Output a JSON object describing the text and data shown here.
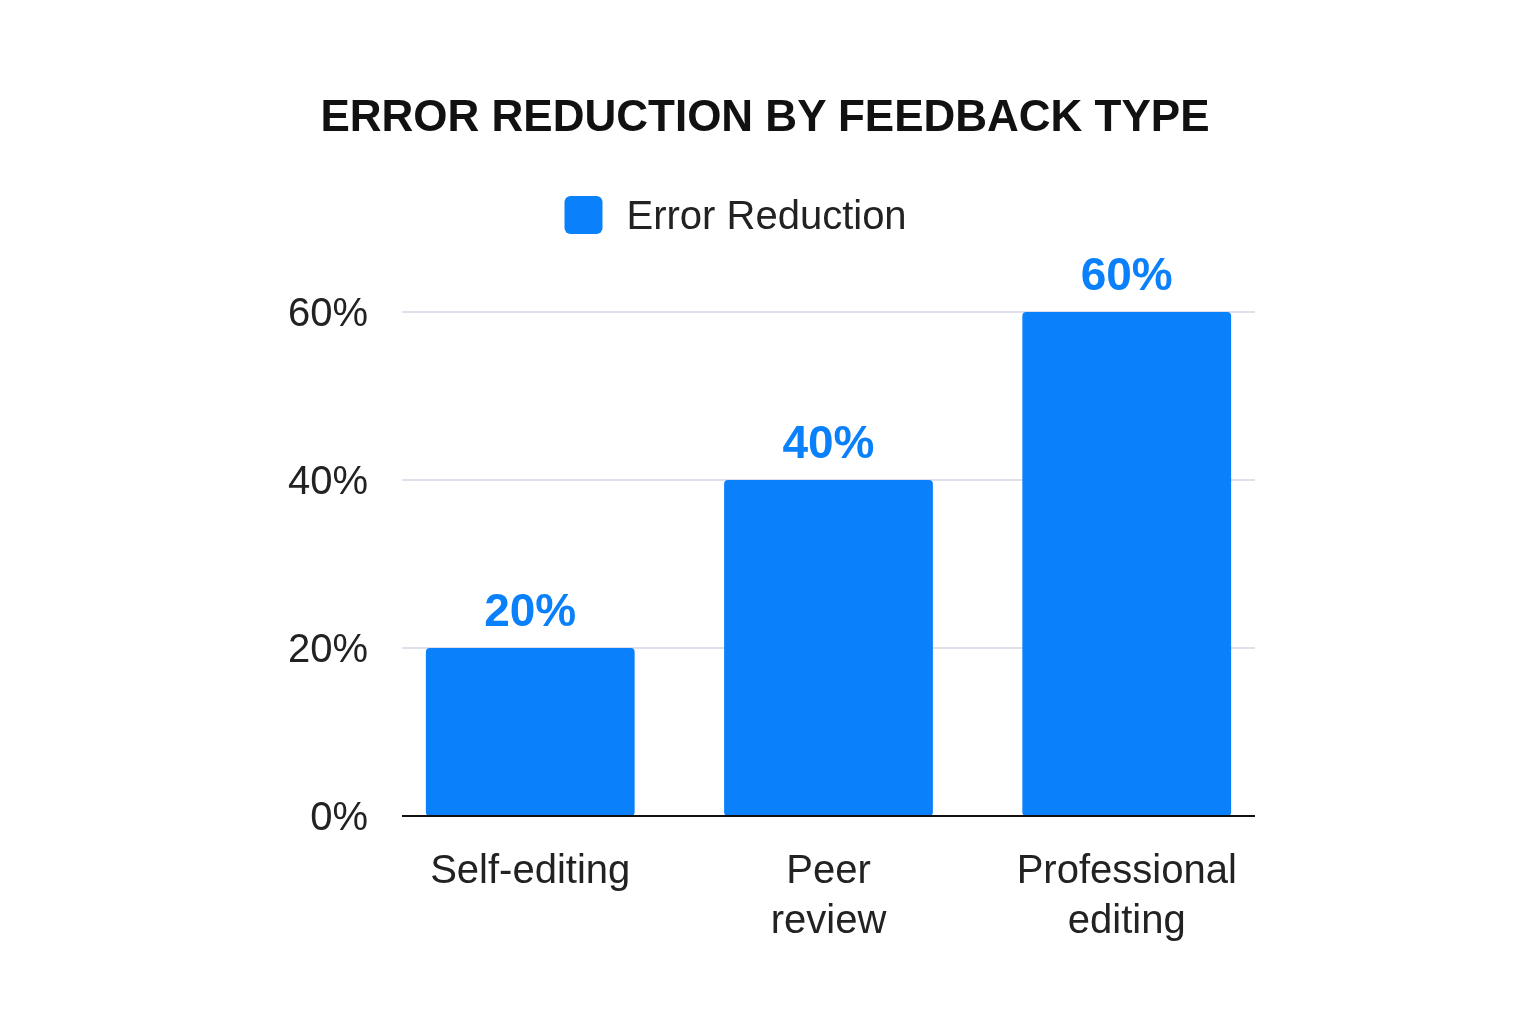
{
  "chart_data": {
    "type": "bar",
    "title": "ERROR REDUCTION BY FEEDBACK TYPE",
    "categories": [
      "Self-editing",
      "Peer review",
      "Professional editing"
    ],
    "series": [
      {
        "name": "Error Reduction",
        "color": "#0a80fa",
        "values": [
          20,
          40,
          60
        ],
        "value_labels": [
          "20%",
          "40%",
          "60%"
        ]
      }
    ],
    "ylim": [
      0,
      60
    ],
    "yticks": [
      {
        "value": 0,
        "label": "0%"
      },
      {
        "value": 20,
        "label": "20%"
      },
      {
        "value": 40,
        "label": "40%"
      },
      {
        "value": 60,
        "label": "60%"
      }
    ],
    "grid": "y",
    "legend": "top"
  }
}
